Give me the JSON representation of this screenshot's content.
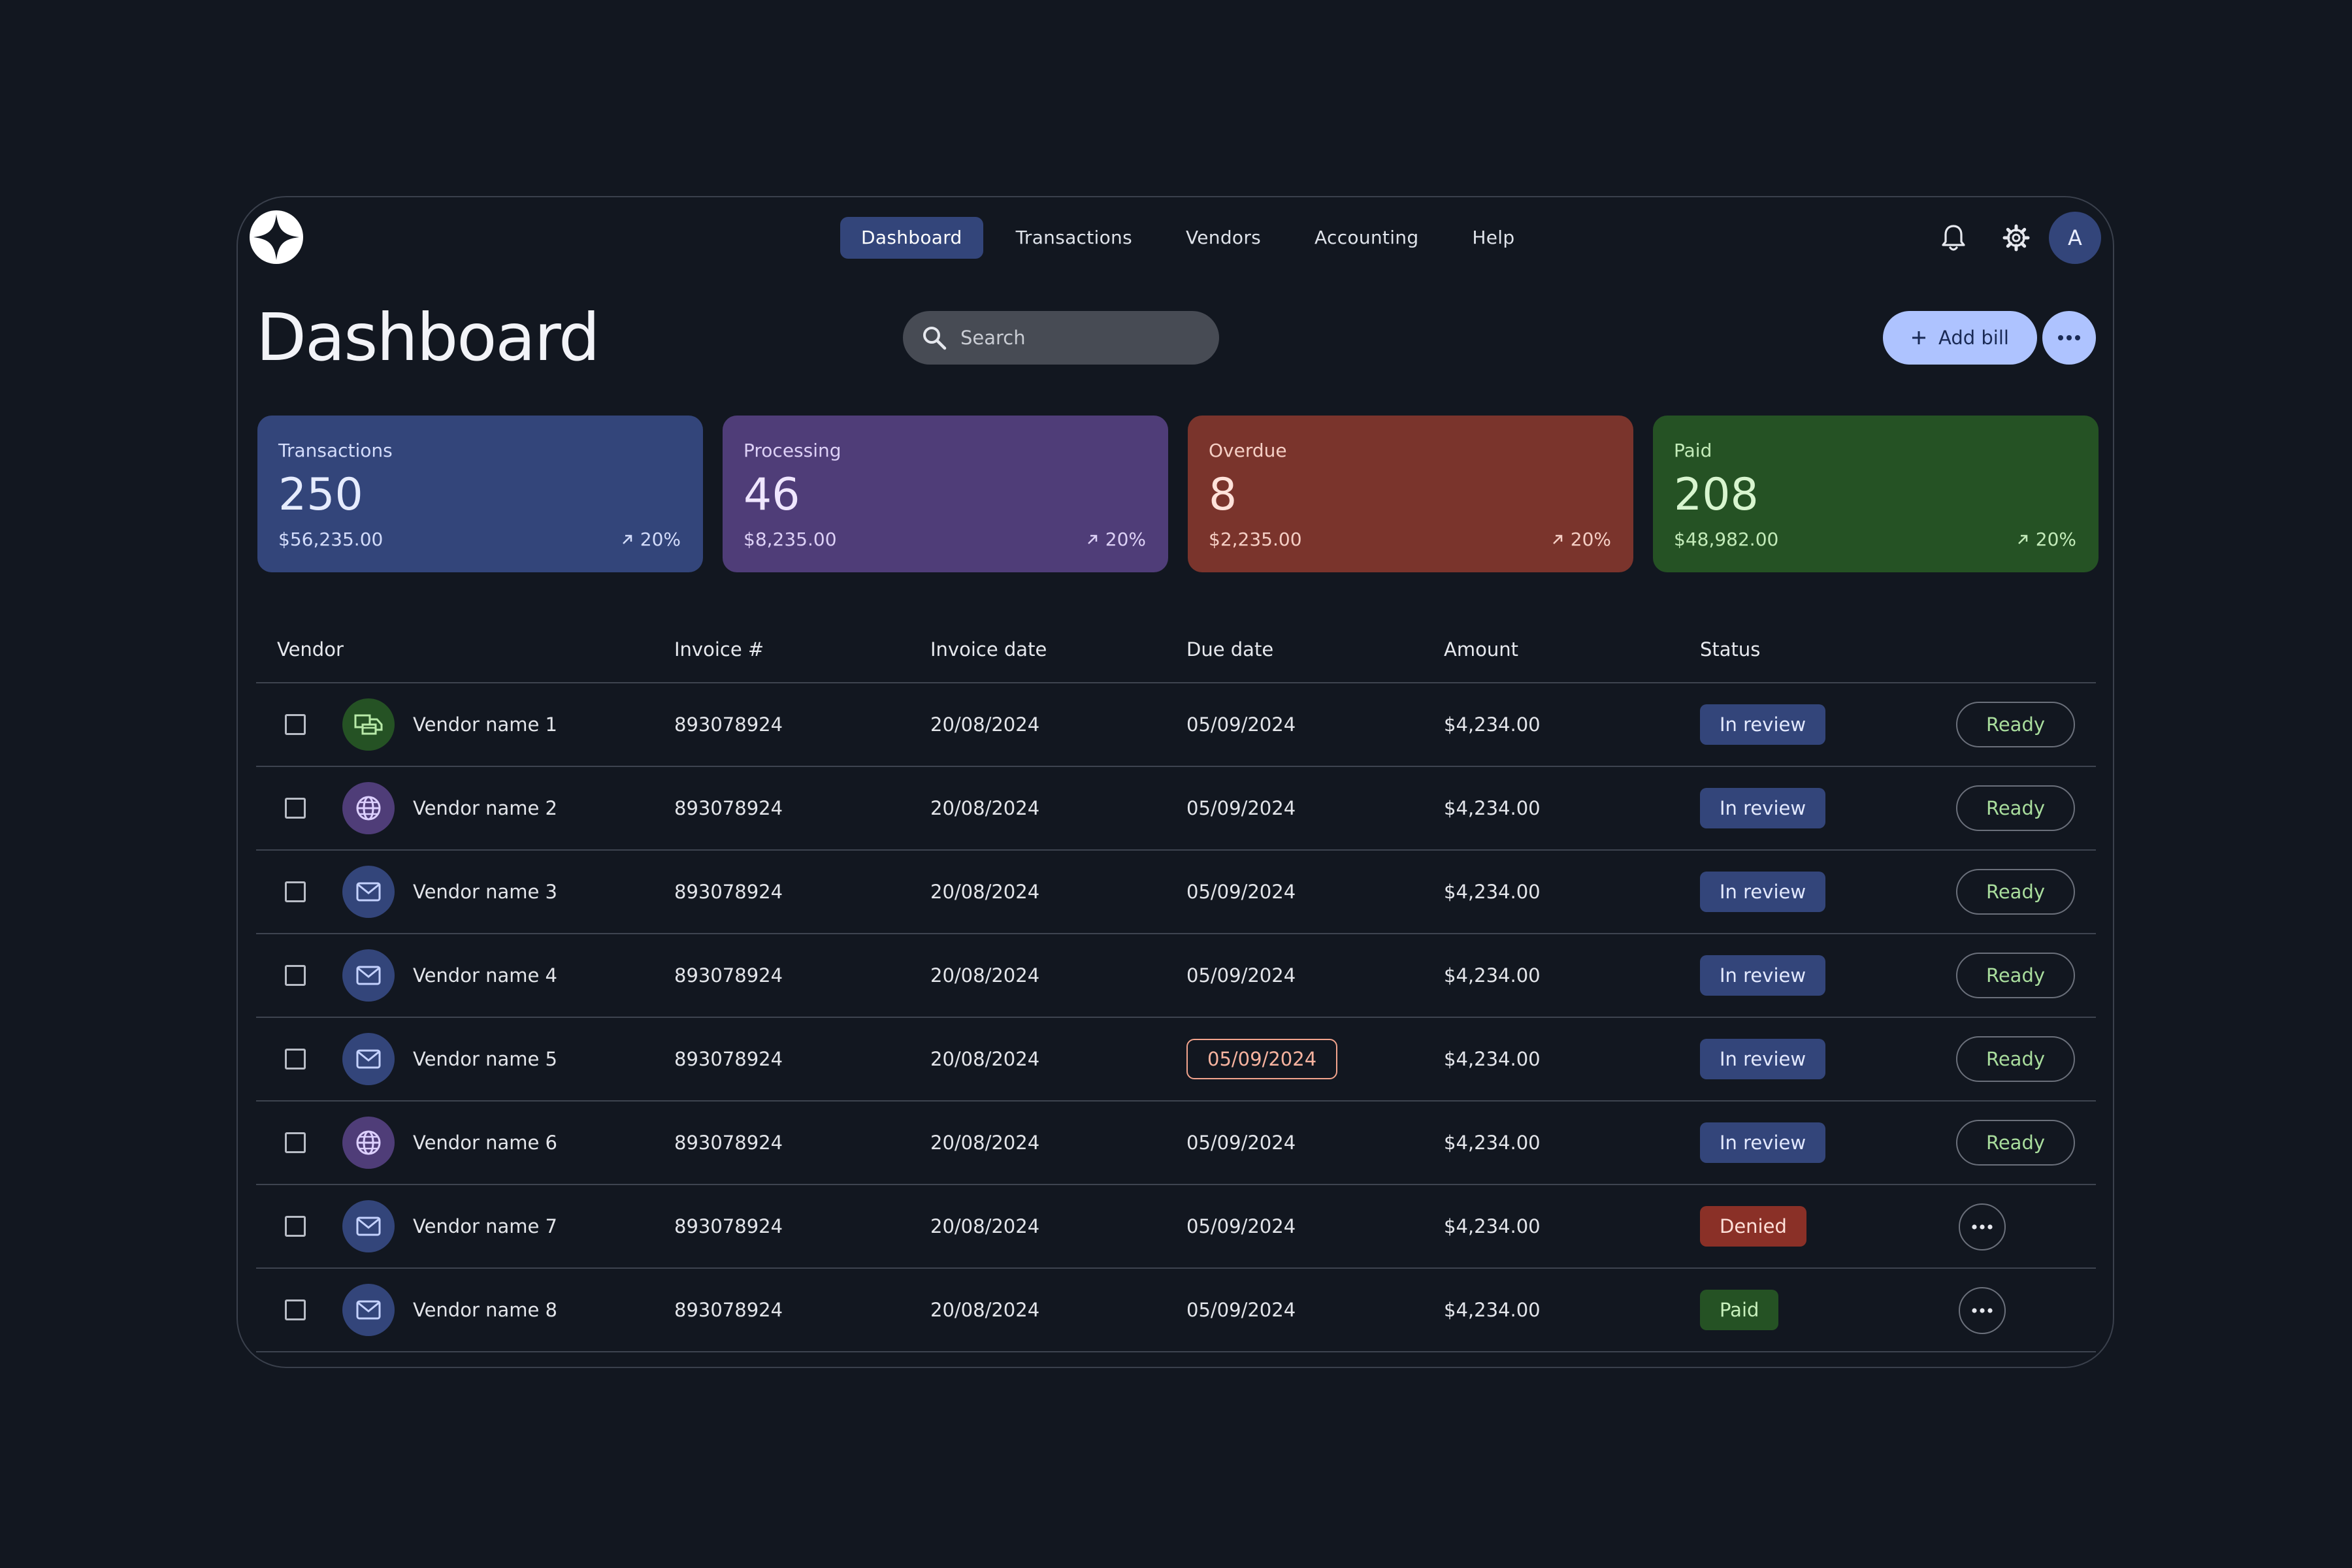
{
  "colors": {
    "background": "#121720",
    "accent": "#aec3ff",
    "nav_active": "#33457a",
    "transactions": "#33457a",
    "processing": "#4f3d78",
    "overdue": "#7a342c",
    "paid": "#255224",
    "in_review": "#33457a",
    "denied": "#8a3027",
    "paid_badge": "#255224"
  },
  "nav": {
    "tabs": [
      {
        "label": "Dashboard",
        "active": true
      },
      {
        "label": "Transactions",
        "active": false
      },
      {
        "label": "Vendors",
        "active": false
      },
      {
        "label": "Accounting",
        "active": false
      },
      {
        "label": "Help",
        "active": false
      }
    ],
    "icons": [
      "bell-icon",
      "gear-icon"
    ],
    "avatar_initial": "A"
  },
  "header": {
    "title": "Dashboard",
    "search_placeholder": "Search",
    "add_bill_label": "Add bill"
  },
  "cards": [
    {
      "label": "Transactions",
      "value": "250",
      "amount": "$56,235.00",
      "trend": "20%"
    },
    {
      "label": "Processing",
      "value": "46",
      "amount": "$8,235.00",
      "trend": "20%"
    },
    {
      "label": "Overdue",
      "value": "8",
      "amount": "$2,235.00",
      "trend": "20%"
    },
    {
      "label": "Paid",
      "value": "208",
      "amount": "$48,982.00",
      "trend": "20%"
    }
  ],
  "table": {
    "headers": {
      "vendor": "Vendor",
      "invoice": "Invoice #",
      "invoice_date": "Invoice date",
      "due_date": "Due date",
      "amount": "Amount",
      "status": "Status"
    },
    "rows": [
      {
        "vendor": "Vendor name 1",
        "icon": "shipping-icon",
        "invoice": "893078924",
        "invoice_date": "20/08/2024",
        "due_date": "05/09/2024",
        "amount": "$4,234.00",
        "status": "In review",
        "action": "Ready"
      },
      {
        "vendor": "Vendor name 2",
        "icon": "globe-icon",
        "invoice": "893078924",
        "invoice_date": "20/08/2024",
        "due_date": "05/09/2024",
        "amount": "$4,234.00",
        "status": "In review",
        "action": "Ready"
      },
      {
        "vendor": "Vendor name 3",
        "icon": "mail-icon",
        "invoice": "893078924",
        "invoice_date": "20/08/2024",
        "due_date": "05/09/2024",
        "amount": "$4,234.00",
        "status": "In review",
        "action": "Ready"
      },
      {
        "vendor": "Vendor name 4",
        "icon": "mail-icon",
        "invoice": "893078924",
        "invoice_date": "20/08/2024",
        "due_date": "05/09/2024",
        "amount": "$4,234.00",
        "status": "In review",
        "action": "Ready"
      },
      {
        "vendor": "Vendor name 5",
        "icon": "mail-icon",
        "invoice": "893078924",
        "invoice_date": "20/08/2024",
        "due_date": "05/09/2024",
        "amount": "$4,234.00",
        "status": "In review",
        "action": "Ready",
        "due_flag": true
      },
      {
        "vendor": "Vendor name 6",
        "icon": "globe-icon",
        "invoice": "893078924",
        "invoice_date": "20/08/2024",
        "due_date": "05/09/2024",
        "amount": "$4,234.00",
        "status": "In review",
        "action": "Ready"
      },
      {
        "vendor": "Vendor name 7",
        "icon": "mail-icon",
        "invoice": "893078924",
        "invoice_date": "20/08/2024",
        "due_date": "05/09/2024",
        "amount": "$4,234.00",
        "status": "Denied",
        "action": "more"
      },
      {
        "vendor": "Vendor name 8",
        "icon": "mail-icon",
        "invoice": "893078924",
        "invoice_date": "20/08/2024",
        "due_date": "05/09/2024",
        "amount": "$4,234.00",
        "status": "Paid",
        "action": "more"
      }
    ]
  }
}
